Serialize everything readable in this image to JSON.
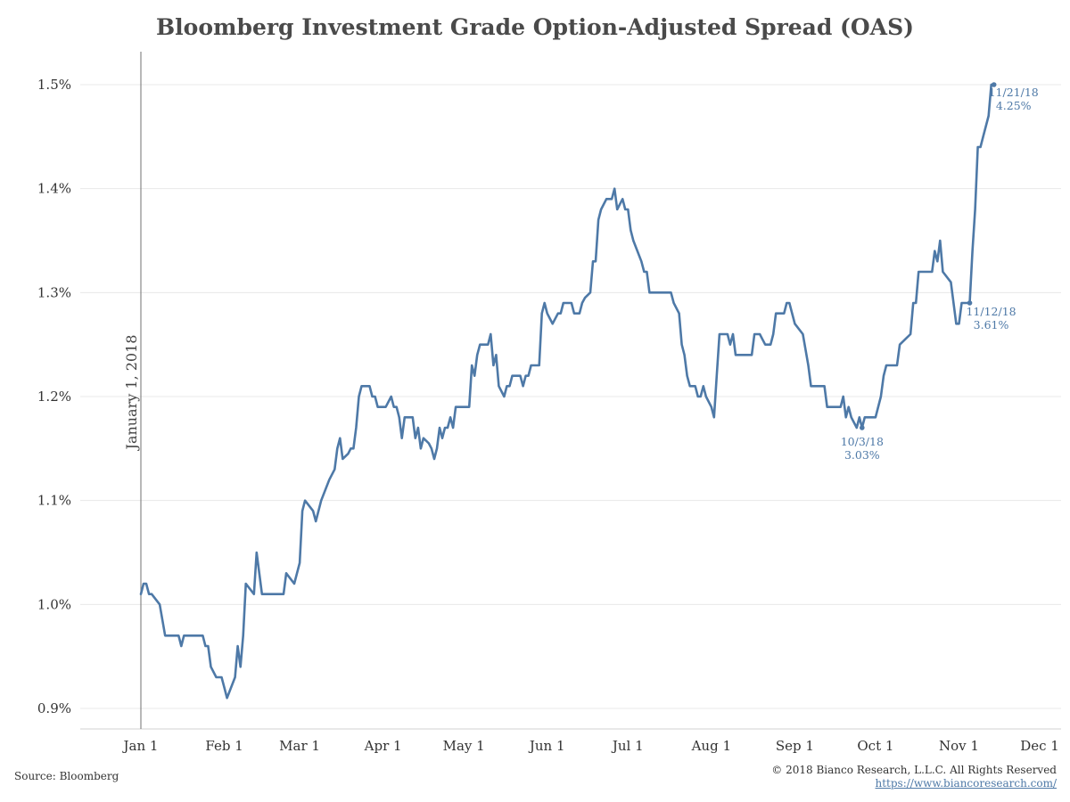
{
  "title": "Bloomberg Investment Grade Option-Adjusted Spread (OAS)",
  "footer": {
    "source": "Source: Bloomberg",
    "copyright": "© 2018 Bianco Research, L.L.C. All Rights Reserved",
    "url": "https://www.biancoresearch.com/"
  },
  "colors": {
    "line": "#4e79a7",
    "ref_line": "#888888",
    "grid": "#e8e8e8"
  },
  "chart_data": {
    "type": "line",
    "ylim": [
      0.885,
      1.505
    ],
    "grid": true,
    "y_ticks": [
      {
        "value": 0.9,
        "label": "0.9%"
      },
      {
        "value": 1.0,
        "label": "1.0%"
      },
      {
        "value": 1.1,
        "label": "1.1%"
      },
      {
        "value": 1.2,
        "label": "1.2%"
      },
      {
        "value": 1.3,
        "label": "1.3%"
      },
      {
        "value": 1.4,
        "label": "1.4%"
      },
      {
        "value": 1.5,
        "label": "1.5%"
      }
    ],
    "x_ticks": [
      {
        "date": "2018-01-01",
        "label": "Jan 1"
      },
      {
        "date": "2018-02-01",
        "label": "Feb 1"
      },
      {
        "date": "2018-03-01",
        "label": "Mar 1"
      },
      {
        "date": "2018-04-01",
        "label": "Apr 1"
      },
      {
        "date": "2018-05-01",
        "label": "May 1"
      },
      {
        "date": "2018-06-01",
        "label": "Jun 1"
      },
      {
        "date": "2018-07-01",
        "label": "Jul 1"
      },
      {
        "date": "2018-08-01",
        "label": "Aug 1"
      },
      {
        "date": "2018-09-01",
        "label": "Sep 1"
      },
      {
        "date": "2018-10-01",
        "label": "Oct 1"
      },
      {
        "date": "2018-11-01",
        "label": "Nov 1"
      },
      {
        "date": "2018-12-01",
        "label": "Dec 1"
      }
    ],
    "reference_line": {
      "date": "2018-01-01",
      "label": "January 1, 2018"
    },
    "series": [
      {
        "points": [
          [
            "2018-01-01",
            1.01
          ],
          [
            "2018-01-02",
            1.02
          ],
          [
            "2018-01-03",
            1.02
          ],
          [
            "2018-01-04",
            1.01
          ],
          [
            "2018-01-05",
            1.01
          ],
          [
            "2018-01-08",
            1.0
          ],
          [
            "2018-01-10",
            0.97
          ],
          [
            "2018-01-12",
            0.97
          ],
          [
            "2018-01-15",
            0.97
          ],
          [
            "2018-01-16",
            0.96
          ],
          [
            "2018-01-17",
            0.97
          ],
          [
            "2018-01-19",
            0.97
          ],
          [
            "2018-01-22",
            0.97
          ],
          [
            "2018-01-24",
            0.97
          ],
          [
            "2018-01-25",
            0.96
          ],
          [
            "2018-01-26",
            0.96
          ],
          [
            "2018-01-27",
            0.94
          ],
          [
            "2018-01-29",
            0.93
          ],
          [
            "2018-01-31",
            0.93
          ],
          [
            "2018-02-01",
            0.92
          ],
          [
            "2018-02-02",
            0.91
          ],
          [
            "2018-02-05",
            0.93
          ],
          [
            "2018-02-06",
            0.96
          ],
          [
            "2018-02-07",
            0.94
          ],
          [
            "2018-02-08",
            0.97
          ],
          [
            "2018-02-09",
            1.02
          ],
          [
            "2018-02-12",
            1.01
          ],
          [
            "2018-02-13",
            1.05
          ],
          [
            "2018-02-15",
            1.01
          ],
          [
            "2018-02-20",
            1.01
          ],
          [
            "2018-02-23",
            1.01
          ],
          [
            "2018-02-24",
            1.03
          ],
          [
            "2018-02-27",
            1.02
          ],
          [
            "2018-03-01",
            1.04
          ],
          [
            "2018-03-02",
            1.09
          ],
          [
            "2018-03-03",
            1.1
          ],
          [
            "2018-03-06",
            1.09
          ],
          [
            "2018-03-07",
            1.08
          ],
          [
            "2018-03-08",
            1.09
          ],
          [
            "2018-03-09",
            1.1
          ],
          [
            "2018-03-12",
            1.12
          ],
          [
            "2018-03-14",
            1.13
          ],
          [
            "2018-03-15",
            1.15
          ],
          [
            "2018-03-16",
            1.16
          ],
          [
            "2018-03-17",
            1.14
          ],
          [
            "2018-03-19",
            1.145
          ],
          [
            "2018-03-20",
            1.15
          ],
          [
            "2018-03-21",
            1.15
          ],
          [
            "2018-03-22",
            1.17
          ],
          [
            "2018-03-23",
            1.2
          ],
          [
            "2018-03-24",
            1.21
          ],
          [
            "2018-03-27",
            1.21
          ],
          [
            "2018-03-28",
            1.2
          ],
          [
            "2018-03-29",
            1.2
          ],
          [
            "2018-03-30",
            1.19
          ],
          [
            "2018-04-02",
            1.19
          ],
          [
            "2018-04-04",
            1.2
          ],
          [
            "2018-04-05",
            1.19
          ],
          [
            "2018-04-06",
            1.19
          ],
          [
            "2018-04-07",
            1.18
          ],
          [
            "2018-04-08",
            1.16
          ],
          [
            "2018-04-09",
            1.18
          ],
          [
            "2018-04-12",
            1.18
          ],
          [
            "2018-04-13",
            1.16
          ],
          [
            "2018-04-14",
            1.17
          ],
          [
            "2018-04-15",
            1.15
          ],
          [
            "2018-04-16",
            1.16
          ],
          [
            "2018-04-18",
            1.155
          ],
          [
            "2018-04-19",
            1.15
          ],
          [
            "2018-04-20",
            1.14
          ],
          [
            "2018-04-21",
            1.15
          ],
          [
            "2018-04-22",
            1.17
          ],
          [
            "2018-04-23",
            1.16
          ],
          [
            "2018-04-24",
            1.17
          ],
          [
            "2018-04-25",
            1.17
          ],
          [
            "2018-04-26",
            1.18
          ],
          [
            "2018-04-27",
            1.17
          ],
          [
            "2018-04-28",
            1.19
          ],
          [
            "2018-05-01",
            1.19
          ],
          [
            "2018-05-03",
            1.19
          ],
          [
            "2018-05-04",
            1.23
          ],
          [
            "2018-05-05",
            1.22
          ],
          [
            "2018-05-06",
            1.24
          ],
          [
            "2018-05-07",
            1.25
          ],
          [
            "2018-05-10",
            1.25
          ],
          [
            "2018-05-11",
            1.26
          ],
          [
            "2018-05-12",
            1.23
          ],
          [
            "2018-05-13",
            1.24
          ],
          [
            "2018-05-14",
            1.21
          ],
          [
            "2018-05-16",
            1.2
          ],
          [
            "2018-05-17",
            1.21
          ],
          [
            "2018-05-18",
            1.21
          ],
          [
            "2018-05-19",
            1.22
          ],
          [
            "2018-05-22",
            1.22
          ],
          [
            "2018-05-23",
            1.21
          ],
          [
            "2018-05-24",
            1.22
          ],
          [
            "2018-05-25",
            1.22
          ],
          [
            "2018-05-26",
            1.23
          ],
          [
            "2018-05-29",
            1.23
          ],
          [
            "2018-05-30",
            1.28
          ],
          [
            "2018-05-31",
            1.29
          ],
          [
            "2018-06-01",
            1.28
          ],
          [
            "2018-06-02",
            1.275
          ],
          [
            "2018-06-03",
            1.27
          ],
          [
            "2018-06-05",
            1.28
          ],
          [
            "2018-06-06",
            1.28
          ],
          [
            "2018-06-07",
            1.29
          ],
          [
            "2018-06-10",
            1.29
          ],
          [
            "2018-06-11",
            1.28
          ],
          [
            "2018-06-13",
            1.28
          ],
          [
            "2018-06-14",
            1.29
          ],
          [
            "2018-06-15",
            1.295
          ],
          [
            "2018-06-17",
            1.3
          ],
          [
            "2018-06-18",
            1.33
          ],
          [
            "2018-06-19",
            1.33
          ],
          [
            "2018-06-20",
            1.37
          ],
          [
            "2018-06-21",
            1.38
          ],
          [
            "2018-06-23",
            1.39
          ],
          [
            "2018-06-25",
            1.39
          ],
          [
            "2018-06-26",
            1.4
          ],
          [
            "2018-06-27",
            1.38
          ],
          [
            "2018-06-28",
            1.385
          ],
          [
            "2018-06-29",
            1.39
          ],
          [
            "2018-06-30",
            1.38
          ],
          [
            "2018-07-01",
            1.38
          ],
          [
            "2018-07-02",
            1.36
          ],
          [
            "2018-07-03",
            1.35
          ],
          [
            "2018-07-06",
            1.33
          ],
          [
            "2018-07-07",
            1.32
          ],
          [
            "2018-07-08",
            1.32
          ],
          [
            "2018-07-09",
            1.3
          ],
          [
            "2018-07-17",
            1.3
          ],
          [
            "2018-07-18",
            1.29
          ],
          [
            "2018-07-20",
            1.28
          ],
          [
            "2018-07-21",
            1.25
          ],
          [
            "2018-07-22",
            1.24
          ],
          [
            "2018-07-23",
            1.22
          ],
          [
            "2018-07-24",
            1.21
          ],
          [
            "2018-07-26",
            1.21
          ],
          [
            "2018-07-27",
            1.2
          ],
          [
            "2018-07-28",
            1.2
          ],
          [
            "2018-07-29",
            1.21
          ],
          [
            "2018-07-30",
            1.2
          ],
          [
            "2018-08-01",
            1.19
          ],
          [
            "2018-08-02",
            1.18
          ],
          [
            "2018-08-03",
            1.22
          ],
          [
            "2018-08-04",
            1.26
          ],
          [
            "2018-08-07",
            1.26
          ],
          [
            "2018-08-08",
            1.25
          ],
          [
            "2018-08-09",
            1.26
          ],
          [
            "2018-08-10",
            1.24
          ],
          [
            "2018-08-16",
            1.24
          ],
          [
            "2018-08-17",
            1.26
          ],
          [
            "2018-08-19",
            1.26
          ],
          [
            "2018-08-20",
            1.255
          ],
          [
            "2018-08-21",
            1.25
          ],
          [
            "2018-08-23",
            1.25
          ],
          [
            "2018-08-24",
            1.26
          ],
          [
            "2018-08-25",
            1.28
          ],
          [
            "2018-08-28",
            1.28
          ],
          [
            "2018-08-29",
            1.29
          ],
          [
            "2018-08-30",
            1.29
          ],
          [
            "2018-09-01",
            1.27
          ],
          [
            "2018-09-04",
            1.26
          ],
          [
            "2018-09-06",
            1.23
          ],
          [
            "2018-09-07",
            1.21
          ],
          [
            "2018-09-12",
            1.21
          ],
          [
            "2018-09-13",
            1.19
          ],
          [
            "2018-09-18",
            1.19
          ],
          [
            "2018-09-19",
            1.2
          ],
          [
            "2018-09-20",
            1.18
          ],
          [
            "2018-09-21",
            1.19
          ],
          [
            "2018-09-22",
            1.18
          ],
          [
            "2018-09-24",
            1.17
          ],
          [
            "2018-09-25",
            1.18
          ],
          [
            "2018-09-26",
            1.17
          ],
          [
            "2018-09-27",
            1.18
          ],
          [
            "2018-10-01",
            1.18
          ],
          [
            "2018-10-03",
            1.2
          ],
          [
            "2018-10-04",
            1.22
          ],
          [
            "2018-10-05",
            1.23
          ],
          [
            "2018-10-09",
            1.23
          ],
          [
            "2018-10-10",
            1.25
          ],
          [
            "2018-10-12",
            1.255
          ],
          [
            "2018-10-14",
            1.26
          ],
          [
            "2018-10-15",
            1.29
          ],
          [
            "2018-10-16",
            1.29
          ],
          [
            "2018-10-17",
            1.32
          ],
          [
            "2018-10-22",
            1.32
          ],
          [
            "2018-10-23",
            1.34
          ],
          [
            "2018-10-24",
            1.33
          ],
          [
            "2018-10-25",
            1.35
          ],
          [
            "2018-10-26",
            1.32
          ],
          [
            "2018-10-29",
            1.31
          ],
          [
            "2018-10-30",
            1.29
          ],
          [
            "2018-10-31",
            1.27
          ],
          [
            "2018-11-01",
            1.27
          ],
          [
            "2018-11-02",
            1.29
          ],
          [
            "2018-11-05",
            1.29
          ],
          [
            "2018-11-06",
            1.34
          ],
          [
            "2018-11-07",
            1.38
          ],
          [
            "2018-11-08",
            1.44
          ],
          [
            "2018-11-09",
            1.44
          ],
          [
            "2018-11-10",
            1.45
          ],
          [
            "2018-11-12",
            1.47
          ],
          [
            "2018-11-13",
            1.5
          ],
          [
            "2018-11-14",
            1.5
          ]
        ]
      }
    ],
    "annotations": [
      {
        "date": "2018-11-14",
        "value": 1.5,
        "lines": [
          "11/21/18",
          "4.25%"
        ]
      },
      {
        "date": "2018-11-05",
        "value": 1.29,
        "lines": [
          "11/12/18",
          "3.61%"
        ]
      },
      {
        "date": "2018-09-26",
        "value": 1.17,
        "lines": [
          "10/3/18",
          "3.03%"
        ]
      }
    ]
  }
}
